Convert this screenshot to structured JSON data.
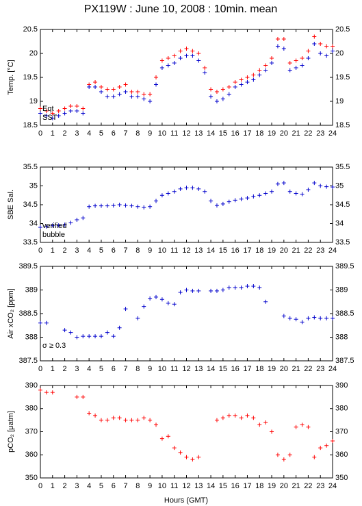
{
  "title": "PX119W : June 10, 2008 : 10min. mean",
  "xlabel": "Hours (GMT)",
  "chart_data": [
    {
      "type": "scatter",
      "ylabel": "Temp. [°C]",
      "x": [
        0,
        0.5,
        1,
        1.5,
        2,
        2.5,
        3,
        3.5,
        4,
        4.5,
        5,
        5.5,
        6,
        6.5,
        7,
        7.5,
        8,
        8.5,
        9,
        9.5,
        10,
        10.5,
        11,
        11.5,
        12,
        12.5,
        13,
        13.5,
        14,
        14.5,
        15,
        15.5,
        16,
        16.5,
        17,
        17.5,
        18,
        18.5,
        19,
        19.5,
        20,
        20.5,
        21,
        21.5,
        22,
        22.5,
        23,
        23.5,
        24
      ],
      "xlim": [
        0,
        24
      ],
      "xticks": [
        0,
        1,
        2,
        3,
        4,
        5,
        6,
        7,
        8,
        9,
        10,
        11,
        12,
        13,
        14,
        15,
        16,
        17,
        18,
        19,
        20,
        21,
        22,
        23,
        24
      ],
      "ylim": [
        18.5,
        20.5
      ],
      "yticks": [
        18.5,
        19,
        19.5,
        20,
        20.5
      ],
      "series": [
        {
          "name": "Eqt",
          "color": "#ff0000",
          "values": [
            18.85,
            18.8,
            18.75,
            18.8,
            18.85,
            18.9,
            18.9,
            18.85,
            19.35,
            19.4,
            19.3,
            19.25,
            19.25,
            19.3,
            19.35,
            19.2,
            19.2,
            19.15,
            19.15,
            19.5,
            19.85,
            19.9,
            19.95,
            20.05,
            20.1,
            20.05,
            20.0,
            19.7,
            19.25,
            19.2,
            19.25,
            19.3,
            19.4,
            19.45,
            19.5,
            19.55,
            19.65,
            19.75,
            19.9,
            20.3,
            20.3,
            19.8,
            19.85,
            19.9,
            20.05,
            20.35,
            20.2,
            20.15,
            20.15
          ]
        },
        {
          "name": "SST",
          "color": "#0000cc",
          "values": [
            18.75,
            18.7,
            18.65,
            18.7,
            18.75,
            18.8,
            18.8,
            18.75,
            19.3,
            19.3,
            19.2,
            19.1,
            19.1,
            19.15,
            19.2,
            19.1,
            19.1,
            19.05,
            19.0,
            19.35,
            19.7,
            19.75,
            19.8,
            19.9,
            19.95,
            19.95,
            19.85,
            19.6,
            19.1,
            19.0,
            19.05,
            19.15,
            19.3,
            19.35,
            19.4,
            19.45,
            19.55,
            19.65,
            19.8,
            20.15,
            20.1,
            19.65,
            19.7,
            19.75,
            19.9,
            20.2,
            20.0,
            19.95,
            20.05
          ]
        }
      ]
    },
    {
      "type": "scatter",
      "ylabel": "SBE Sal.",
      "x": [
        0,
        0.5,
        1,
        1.5,
        2,
        2.5,
        3,
        3.5,
        4,
        4.5,
        5,
        5.5,
        6,
        6.5,
        7,
        7.5,
        8,
        8.5,
        9,
        9.5,
        10,
        10.5,
        11,
        11.5,
        12,
        12.5,
        13,
        13.5,
        14,
        14.5,
        15,
        15.5,
        16,
        16.5,
        17,
        17.5,
        18,
        18.5,
        19,
        19.5,
        20,
        20.5,
        21,
        21.5,
        22,
        22.5,
        23,
        23.5,
        24
      ],
      "xlim": [
        0,
        24
      ],
      "xticks": [
        0,
        1,
        2,
        3,
        4,
        5,
        6,
        7,
        8,
        9,
        10,
        11,
        12,
        13,
        14,
        15,
        16,
        17,
        18,
        19,
        20,
        21,
        22,
        23,
        24
      ],
      "ylim": [
        33.5,
        35.5
      ],
      "yticks": [
        33.5,
        34,
        34.5,
        35,
        35.5
      ],
      "series": [
        {
          "name": "verified",
          "color": "#0000cc",
          "values": [
            33.9,
            33.92,
            33.95,
            33.95,
            33.97,
            34.02,
            34.1,
            34.15,
            34.45,
            34.47,
            34.47,
            34.47,
            34.48,
            34.5,
            34.48,
            34.47,
            34.45,
            34.43,
            34.45,
            34.6,
            34.75,
            34.8,
            34.85,
            34.92,
            34.95,
            34.95,
            34.92,
            34.85,
            34.6,
            34.48,
            34.52,
            34.58,
            34.62,
            34.65,
            34.68,
            34.72,
            34.75,
            34.8,
            34.85,
            35.05,
            35.08,
            34.85,
            34.8,
            34.78,
            34.9,
            35.08,
            35.0,
            34.98,
            34.97
          ]
        },
        {
          "name": "bubble",
          "color": "#cc00cc",
          "values": [
            null,
            null,
            null,
            null,
            null,
            null,
            null,
            null,
            null,
            null,
            null,
            null,
            null,
            null,
            null,
            null,
            null,
            null,
            null,
            null,
            null,
            null,
            null,
            null,
            null,
            null,
            null,
            null,
            null,
            null,
            null,
            null,
            null,
            null,
            null,
            null,
            null,
            null,
            null,
            null,
            null,
            null,
            null,
            null,
            null,
            null,
            null,
            null,
            null
          ]
        }
      ]
    },
    {
      "type": "scatter",
      "ylabel": "Air xCO₂ [ppm]",
      "annotation": "σ ≥ 0.3",
      "annotation_color": "#cc00cc",
      "x": [
        0,
        0.5,
        1,
        1.5,
        2,
        2.5,
        3,
        3.5,
        4,
        4.5,
        5,
        5.5,
        6,
        6.5,
        7,
        7.5,
        8,
        8.5,
        9,
        9.5,
        10,
        10.5,
        11,
        11.5,
        12,
        12.5,
        13,
        13.5,
        14,
        14.5,
        15,
        15.5,
        16,
        16.5,
        17,
        17.5,
        18,
        18.5,
        19,
        19.5,
        20,
        20.5,
        21,
        21.5,
        22,
        22.5,
        23,
        23.5,
        24
      ],
      "xlim": [
        0,
        24
      ],
      "xticks": [
        0,
        1,
        2,
        3,
        4,
        5,
        6,
        7,
        8,
        9,
        10,
        11,
        12,
        13,
        14,
        15,
        16,
        17,
        18,
        19,
        20,
        21,
        22,
        23,
        24
      ],
      "ylim": [
        387.5,
        389.5
      ],
      "yticks": [
        387.5,
        388,
        388.5,
        389,
        389.5
      ],
      "series": [
        {
          "color": "#0000cc",
          "values": [
            388.3,
            388.3,
            null,
            null,
            388.15,
            388.1,
            388.0,
            388.02,
            388.02,
            388.02,
            388.02,
            388.1,
            388.02,
            388.2,
            388.6,
            null,
            388.4,
            388.65,
            388.82,
            388.85,
            388.8,
            388.72,
            388.7,
            388.95,
            389.0,
            388.98,
            388.98,
            null,
            388.98,
            388.98,
            389.0,
            389.05,
            389.05,
            389.05,
            389.08,
            389.08,
            389.05,
            388.75,
            null,
            null,
            388.45,
            388.4,
            388.38,
            388.32,
            388.4,
            388.42,
            388.4,
            388.4,
            388.4
          ]
        }
      ]
    },
    {
      "type": "scatter",
      "ylabel": "pCO₂ [μatm]",
      "x": [
        0,
        0.5,
        1,
        1.5,
        2,
        2.5,
        3,
        3.5,
        4,
        4.5,
        5,
        5.5,
        6,
        6.5,
        7,
        7.5,
        8,
        8.5,
        9,
        9.5,
        10,
        10.5,
        11,
        11.5,
        12,
        12.5,
        13,
        13.5,
        14,
        14.5,
        15,
        15.5,
        16,
        16.5,
        17,
        17.5,
        18,
        18.5,
        19,
        19.5,
        20,
        20.5,
        21,
        21.5,
        22,
        22.5,
        23,
        23.5,
        24
      ],
      "xlim": [
        0,
        24
      ],
      "xticks": [
        0,
        1,
        2,
        3,
        4,
        5,
        6,
        7,
        8,
        9,
        10,
        11,
        12,
        13,
        14,
        15,
        16,
        17,
        18,
        19,
        20,
        21,
        22,
        23,
        24
      ],
      "ylim": [
        350,
        390
      ],
      "yticks": [
        350,
        360,
        370,
        380,
        390
      ],
      "series": [
        {
          "color": "#ff0000",
          "values": [
            388,
            387,
            387,
            null,
            null,
            null,
            385,
            385,
            378,
            377,
            375,
            375,
            376,
            376,
            375,
            375,
            375,
            376,
            375,
            373,
            367,
            368,
            363,
            361,
            359,
            358,
            359,
            null,
            null,
            375,
            376,
            377,
            377,
            376,
            377,
            376,
            373,
            374,
            370,
            360,
            358,
            360,
            372,
            373,
            372,
            359,
            363,
            364,
            366
          ]
        }
      ]
    }
  ]
}
